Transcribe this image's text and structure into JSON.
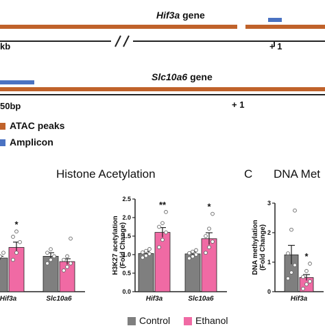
{
  "colors": {
    "atac": "#c0622a",
    "amplicon": "#4a72c2",
    "control": "#7f7f7f",
    "ethanol": "#f06aa4",
    "axis": "#222222"
  },
  "genes": {
    "hif3a": {
      "name": "Hif3a",
      "suffix": "gene",
      "scale_label": "kb",
      "tss_label": "+ 1"
    },
    "slc10a6": {
      "name": "Slc10a6",
      "suffix": "gene",
      "scale_label": "50bp",
      "tss_label": "+ 1"
    }
  },
  "track_legend": {
    "atac": "ATAC peaks",
    "amplicon": "Amplicon"
  },
  "sections": {
    "histone_title": "Histone Acetylation",
    "dna_letter": "C",
    "dna_title": "DNA Met"
  },
  "legend": {
    "control": "Control",
    "ethanol": "Ethanol"
  },
  "chart_data": [
    {
      "type": "bar",
      "categories": [
        "Hif3a",
        "Slc10a6"
      ],
      "series": [
        {
          "name": "Control",
          "values": [
            0.95,
            1.0
          ],
          "errors": [
            0.05,
            0.1
          ],
          "points": [
            [
              0.8,
              1.0,
              1.1
            ],
            [
              0.8,
              0.9,
              1.0,
              1.1,
              1.2
            ]
          ]
        },
        {
          "name": "Ethanol",
          "values": [
            1.25,
            0.85
          ],
          "errors": [
            0.15,
            0.08
          ],
          "points": [
            [
              0.9,
              1.1,
              1.4,
              1.55,
              1.7
            ],
            [
              0.6,
              0.7,
              0.8,
              0.9,
              1.0,
              1.5
            ]
          ]
        }
      ],
      "significance": [
        "*",
        ""
      ],
      "ylim": [
        0,
        2.5
      ]
    },
    {
      "type": "bar",
      "categories": [
        "Hif3a",
        "Slc10a6"
      ],
      "series": [
        {
          "name": "Control",
          "values": [
            1.03,
            1.02
          ],
          "errors": [
            0.05,
            0.05
          ],
          "points": [
            [
              0.92,
              0.97,
              1.02,
              1.06,
              1.1,
              1.15
            ],
            [
              0.9,
              0.95,
              1.0,
              1.04,
              1.08,
              1.12
            ]
          ]
        },
        {
          "name": "Ethanol",
          "values": [
            1.6,
            1.43
          ],
          "errors": [
            0.13,
            0.16
          ],
          "points": [
            [
              1.2,
              1.4,
              1.6,
              1.75,
              1.85,
              2.15
            ],
            [
              1.05,
              1.2,
              1.35,
              1.5,
              1.7,
              2.1
            ]
          ]
        }
      ],
      "significance": [
        "**",
        "*"
      ],
      "ylabel": "H3K27 acetylation (Fold Change)",
      "yticks": [
        "0.0",
        "0.5",
        "1.0",
        "1.5",
        "2.0",
        "2.5"
      ],
      "ylim": [
        0,
        2.5
      ]
    },
    {
      "type": "bar",
      "categories": [
        "Hif3a"
      ],
      "series": [
        {
          "name": "Control",
          "values": [
            1.25
          ],
          "errors": [
            0.32
          ],
          "points": [
            [
              0.45,
              0.65,
              0.9,
              1.3,
              2.1,
              2.75
            ]
          ]
        },
        {
          "name": "Ethanol",
          "values": [
            0.48
          ],
          "errors": [
            0.1
          ],
          "points": [
            [
              0.1,
              0.25,
              0.35,
              0.5,
              0.7,
              0.95
            ]
          ]
        }
      ],
      "significance": [
        "*"
      ],
      "ylabel": "DNA methylation (Fold Change)",
      "yticks": [
        "0",
        "1",
        "2",
        "3"
      ],
      "ylim": [
        0,
        3
      ]
    }
  ]
}
